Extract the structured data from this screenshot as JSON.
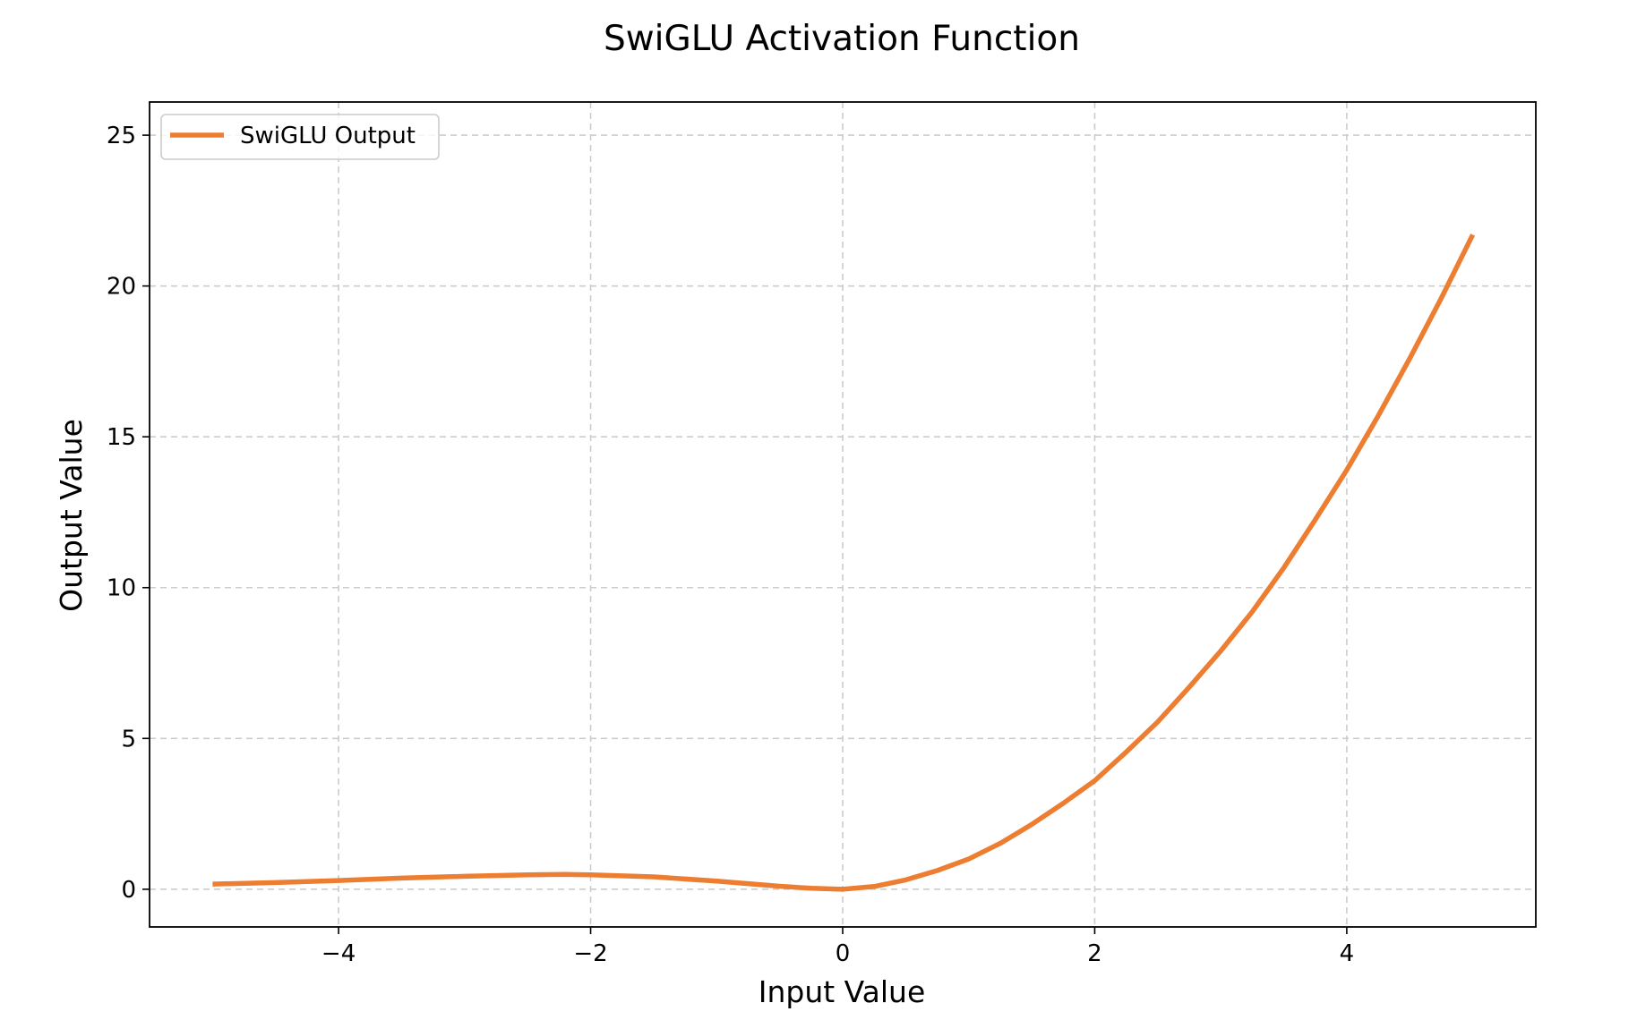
{
  "chart_data": {
    "type": "line",
    "title": "SwiGLU Activation Function",
    "xlabel": "Input Value",
    "ylabel": "Output Value",
    "xlim": [
      -5.5,
      5.5
    ],
    "ylim": [
      -1.25,
      26.1
    ],
    "xticks": [
      -4,
      -2,
      0,
      2,
      4
    ],
    "xtick_labels": [
      "−4",
      "−2",
      "0",
      "2",
      "4"
    ],
    "yticks": [
      0,
      5,
      10,
      15,
      20,
      25
    ],
    "ytick_labels": [
      "0",
      "5",
      "10",
      "15",
      "20",
      "25"
    ],
    "grid": true,
    "legend_position": "top-left",
    "series": [
      {
        "name": "SwiGLU Output",
        "color": "#ed7d31",
        "x": [
          -5.0,
          -4.5,
          -4.0,
          -3.5,
          -3.0,
          -2.5,
          -2.2,
          -2.0,
          -1.5,
          -1.0,
          -0.5,
          -0.25,
          0.0,
          0.25,
          0.5,
          0.75,
          1.0,
          1.25,
          1.5,
          1.75,
          2.0,
          2.25,
          2.5,
          2.75,
          3.0,
          3.25,
          3.5,
          3.75,
          4.0,
          4.25,
          4.5,
          4.75,
          5.0
        ],
        "y": [
          0.17,
          0.22,
          0.29,
          0.37,
          0.43,
          0.48,
          0.49,
          0.48,
          0.41,
          0.27,
          0.1,
          0.03,
          0.0,
          0.09,
          0.31,
          0.62,
          1.0,
          1.52,
          2.15,
          2.85,
          3.6,
          4.55,
          5.55,
          6.7,
          7.9,
          9.2,
          10.65,
          12.25,
          13.9,
          15.7,
          17.6,
          19.6,
          21.7
        ]
      }
    ]
  }
}
